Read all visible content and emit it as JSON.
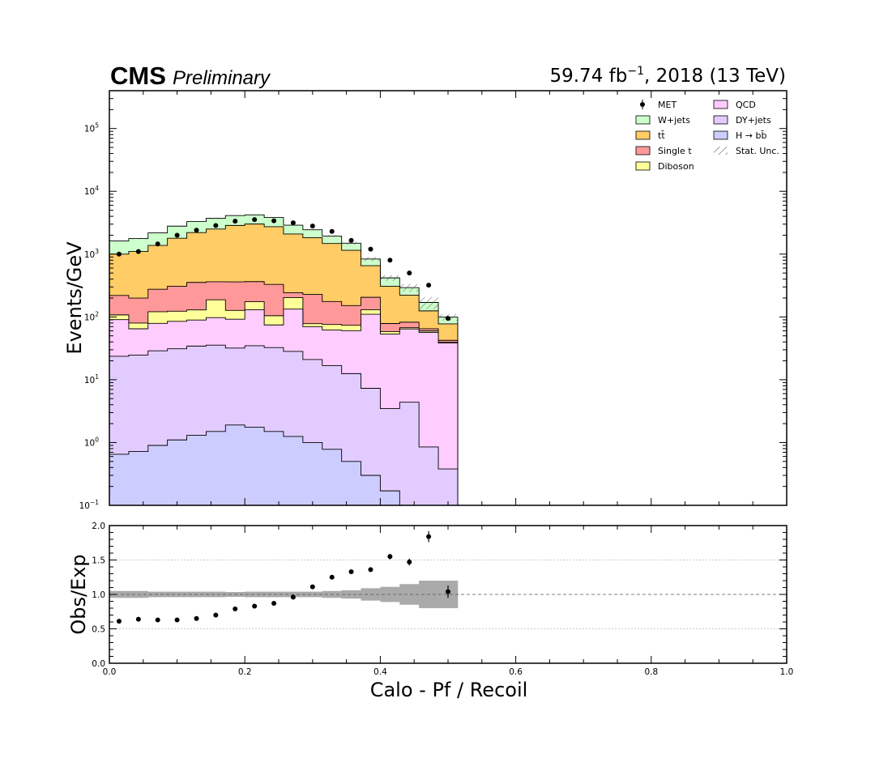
{
  "header": {
    "cms": "CMS",
    "preliminary": "Preliminary",
    "lumi_value": "59.74 fb",
    "lumi_exp": "−1",
    "lumi_rest": ", 2018 (13 TeV)"
  },
  "legend": {
    "col1": [
      {
        "id": "met",
        "label": "MET",
        "kind": "marker"
      },
      {
        "id": "wjets",
        "label": "W+jets",
        "kind": "box"
      },
      {
        "id": "ttbar",
        "label": "tt̄",
        "kind": "box"
      },
      {
        "id": "singlet",
        "label": "Single t",
        "kind": "box"
      },
      {
        "id": "diboson",
        "label": "Diboson",
        "kind": "box"
      }
    ],
    "col2": [
      {
        "id": "qcd",
        "label": "QCD",
        "kind": "box"
      },
      {
        "id": "dyjets",
        "label": "DY+jets",
        "kind": "box"
      },
      {
        "id": "hbb",
        "label": "H → bb̄",
        "kind": "box"
      },
      {
        "id": "stat",
        "label": "Stat. Unc.",
        "kind": "hatch"
      }
    ]
  },
  "chart_data": [
    {
      "type": "area",
      "subtype": "stacked-histogram-log",
      "ylabel": "Events/GeV",
      "yscale": "log",
      "ylim": [
        0.1,
        400000
      ],
      "xlim": [
        0,
        1
      ],
      "y_ticks": [
        {
          "value": 0.1,
          "base": "10",
          "exp": "−1"
        },
        {
          "value": 1,
          "base": "10",
          "exp": "0"
        },
        {
          "value": 10,
          "base": "10",
          "exp": "1"
        },
        {
          "value": 100,
          "base": "10",
          "exp": "2"
        },
        {
          "value": 1000,
          "base": "10",
          "exp": "3"
        },
        {
          "value": 10000,
          "base": "10",
          "exp": "4"
        },
        {
          "value": 100000,
          "base": "10",
          "exp": "5"
        }
      ],
      "bin_edges": [
        0,
        0.0286,
        0.0571,
        0.0857,
        0.1143,
        0.1429,
        0.1714,
        0.2,
        0.2286,
        0.2571,
        0.2857,
        0.3143,
        0.3429,
        0.3714,
        0.4,
        0.4286,
        0.4571,
        0.4857,
        0.5143
      ],
      "colors": {
        "hbb": "#ccccff",
        "dyjets": "#e2ccff",
        "qcd": "#ffccff",
        "diboson": "#ffff99",
        "singlet": "#ff9999",
        "ttbar": "#ffcc66",
        "wjets": "#ccffcc"
      },
      "series": [
        {
          "name": "H → bb̄",
          "key": "hbb",
          "values": [
            0.65,
            0.72,
            0.9,
            1.1,
            1.3,
            1.5,
            1.9,
            1.75,
            1.5,
            1.25,
            1.0,
            0.78,
            0.5,
            0.3,
            0.17,
            0.08,
            0.05,
            0.05
          ]
        },
        {
          "name": "DY+jets",
          "key": "dyjets",
          "values": [
            23,
            24,
            28,
            30,
            33,
            34,
            30,
            33,
            31,
            27,
            20,
            16,
            12,
            7,
            3.3,
            4.3,
            0.8,
            0.33
          ]
        },
        {
          "name": "QCD",
          "key": "qcd",
          "values": [
            67,
            40,
            50,
            54,
            55,
            62,
            60,
            95,
            42,
            105,
            49,
            45,
            48,
            103,
            50,
            60,
            56,
            38
          ]
        },
        {
          "name": "Diboson",
          "key": "diboson",
          "values": [
            17,
            15,
            42,
            38,
            40,
            90,
            35,
            45,
            30,
            70,
            8,
            14,
            13,
            20,
            5,
            3,
            3,
            1
          ]
        },
        {
          "name": "Single t",
          "key": "singlet",
          "values": [
            112,
            120,
            155,
            185,
            225,
            175,
            235,
            190,
            225,
            40,
            150,
            100,
            78,
            75,
            20,
            15,
            5,
            3
          ]
        },
        {
          "name": "tt̄",
          "key": "ttbar",
          "values": [
            780,
            900,
            1100,
            1480,
            1850,
            2150,
            2500,
            2650,
            2400,
            1850,
            1600,
            1300,
            1000,
            450,
            230,
            140,
            60,
            35
          ]
        },
        {
          "name": "W+jets",
          "key": "wjets",
          "values": [
            620,
            670,
            800,
            1000,
            1100,
            1200,
            1250,
            1200,
            1100,
            800,
            620,
            460,
            340,
            180,
            110,
            70,
            45,
            22
          ]
        }
      ],
      "observed": {
        "name": "MET",
        "x": [
          0.0143,
          0.0429,
          0.0714,
          0.1,
          0.1286,
          0.1571,
          0.1857,
          0.2143,
          0.2429,
          0.2714,
          0.3,
          0.3286,
          0.3571,
          0.3857,
          0.4143,
          0.4429,
          0.4714,
          0.5
        ],
        "y": [
          1000,
          1100,
          1450,
          2000,
          2400,
          2850,
          3350,
          3550,
          3400,
          3150,
          2800,
          2300,
          1650,
          1200,
          800,
          500,
          320,
          95
        ]
      },
      "stat_unc_rel": [
        0.03,
        0.03,
        0.025,
        0.025,
        0.02,
        0.02,
        0.02,
        0.02,
        0.02,
        0.025,
        0.03,
        0.035,
        0.045,
        0.07,
        0.1,
        0.14,
        0.22,
        0.12
      ]
    },
    {
      "type": "scatter",
      "subtype": "ratio",
      "ylabel": "Obs/Exp",
      "xlabel": "Calo - Pf / Recoil",
      "xlim": [
        0,
        1
      ],
      "ylim": [
        0,
        2
      ],
      "x_ticks": [
        "0.0",
        "0.2",
        "0.4",
        "0.6",
        "0.8",
        "1.0"
      ],
      "y_ticks": [
        "0.0",
        "0.5",
        "1.0",
        "1.5",
        "2.0"
      ],
      "grid": true,
      "x": [
        0.0143,
        0.0429,
        0.0714,
        0.1,
        0.1286,
        0.1571,
        0.1857,
        0.2143,
        0.2429,
        0.2714,
        0.3,
        0.3286,
        0.3571,
        0.3857,
        0.4143,
        0.4429,
        0.4714,
        0.5
      ],
      "y": [
        0.61,
        0.64,
        0.63,
        0.63,
        0.65,
        0.7,
        0.79,
        0.83,
        0.87,
        0.96,
        1.11,
        1.25,
        1.33,
        1.36,
        1.55,
        1.47,
        1.84,
        1.04
      ],
      "yerr": [
        0.01,
        0.01,
        0.01,
        0.01,
        0.01,
        0.01,
        0.01,
        0.01,
        0.01,
        0.01,
        0.015,
        0.015,
        0.02,
        0.02,
        0.04,
        0.05,
        0.08,
        0.09
      ],
      "unc_band_halfwidth": [
        0.05,
        0.05,
        0.04,
        0.04,
        0.04,
        0.04,
        0.035,
        0.04,
        0.04,
        0.04,
        0.04,
        0.05,
        0.06,
        0.09,
        0.11,
        0.15,
        0.2,
        0.2
      ]
    }
  ]
}
